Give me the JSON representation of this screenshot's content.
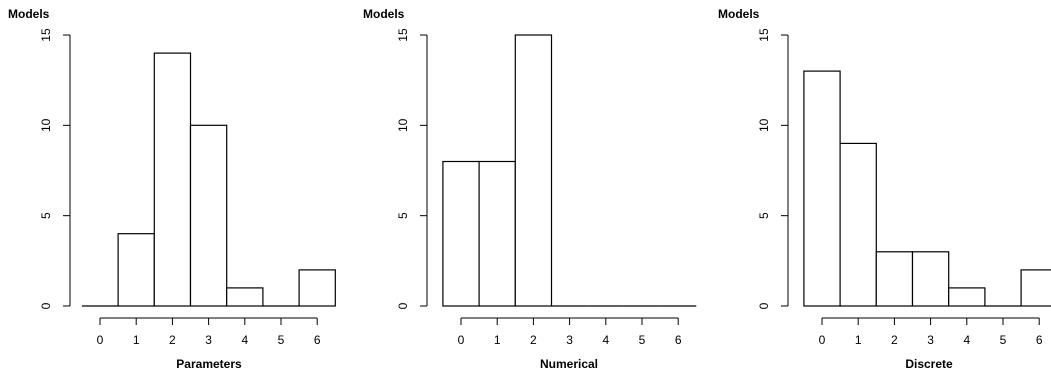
{
  "chart_data": [
    {
      "type": "bar",
      "ylabel": "Models",
      "xlabel": "Parameters",
      "categories": [
        "0",
        "1",
        "2",
        "3",
        "4",
        "5",
        "6"
      ],
      "values": [
        0,
        4,
        14,
        10,
        1,
        0,
        2
      ],
      "xticks": [
        "0",
        "1",
        "2",
        "3",
        "4",
        "5",
        "6"
      ],
      "yticks": [
        "0",
        "5",
        "10",
        "15"
      ],
      "ylim": [
        0,
        15
      ],
      "xlim": [
        -0.5,
        6.5
      ],
      "grid": false,
      "bar_fill": "#ffffff",
      "bar_stroke": "#000000"
    },
    {
      "type": "bar",
      "ylabel": "Models",
      "xlabel": "Numerical",
      "categories": [
        "0",
        "1",
        "2",
        "3",
        "4",
        "5",
        "6"
      ],
      "values": [
        8,
        8,
        15,
        0,
        0,
        0,
        0
      ],
      "xticks": [
        "0",
        "1",
        "2",
        "3",
        "4",
        "5",
        "6"
      ],
      "yticks": [
        "0",
        "5",
        "10",
        "15"
      ],
      "ylim": [
        0,
        15
      ],
      "xlim": [
        -0.5,
        6.5
      ],
      "grid": false,
      "bar_fill": "#ffffff",
      "bar_stroke": "#000000"
    },
    {
      "type": "bar",
      "ylabel": "Models",
      "xlabel": "Discrete",
      "categories": [
        "0",
        "1",
        "2",
        "3",
        "4",
        "5",
        "6"
      ],
      "values": [
        13,
        9,
        3,
        3,
        1,
        0,
        2
      ],
      "xticks": [
        "0",
        "1",
        "2",
        "3",
        "4",
        "5",
        "6"
      ],
      "yticks": [
        "0",
        "5",
        "10",
        "15"
      ],
      "ylim": [
        0,
        15
      ],
      "xlim": [
        -0.5,
        6.5
      ],
      "grid": false,
      "bar_fill": "#ffffff",
      "bar_stroke": "#000000"
    }
  ]
}
